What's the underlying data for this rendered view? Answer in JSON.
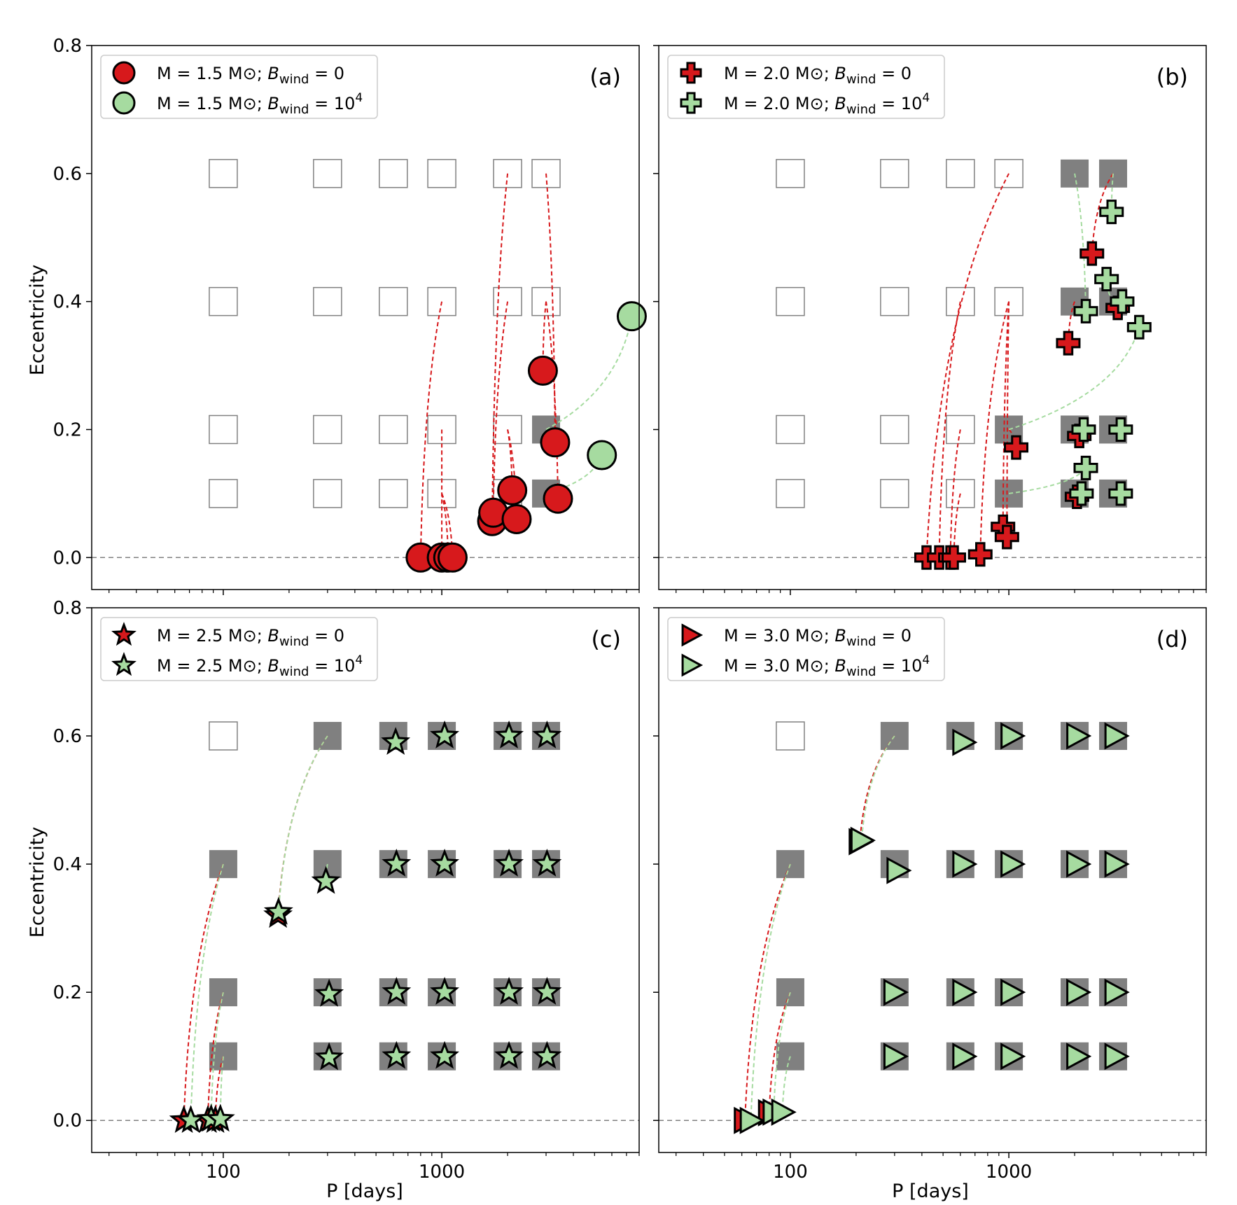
{
  "figure": {
    "xlabel": "P [days]",
    "ylabel": "Eccentricity",
    "xticks": [
      {
        "value": 100,
        "label": "100"
      },
      {
        "value": 1000,
        "label": "1000"
      }
    ],
    "yticks": [
      {
        "value": 0.0,
        "label": "0.0"
      },
      {
        "value": 0.2,
        "label": "0.2"
      },
      {
        "value": 0.4,
        "label": "0.4"
      },
      {
        "value": 0.6,
        "label": "0.6"
      },
      {
        "value": 0.8,
        "label": "0.8"
      }
    ],
    "colors": {
      "red": "#d7191c",
      "green": "#a6dba0",
      "filled_square": "#808080",
      "zero_line": "#808080",
      "red_track": "#d7191c",
      "green_track": "#a6dba0"
    }
  },
  "chart_data": [
    {
      "type": "scatter",
      "panel": "(a)",
      "marker": "circle",
      "xscale": "log",
      "xlim": [
        25,
        8000
      ],
      "ylim": [
        -0.05,
        0.8
      ],
      "legend": [
        {
          "text": "M = 1.5 M⊙;  ",
          "italic": "B",
          "sub": "wind",
          "eq": " = 0",
          "sup": "",
          "color": "red"
        },
        {
          "text": "M = 1.5 M⊙;  ",
          "italic": "B",
          "sub": "wind",
          "eq": " = 10",
          "sup": "4",
          "color": "green"
        }
      ],
      "initial_grid": {
        "P": [
          100,
          300,
          600,
          1000,
          2000,
          3000
        ],
        "e": [
          0.1,
          0.2,
          0.4,
          0.6
        ],
        "filled": [
          [
            3000,
            0.1
          ],
          [
            3000,
            0.2
          ]
        ]
      },
      "series": [
        {
          "name": "Bwind = 0",
          "color": "red",
          "points": [
            {
              "P": 800,
              "e": 0.0,
              "P0": 1000,
              "e0": 0.4
            },
            {
              "P": 1000,
              "e": 0.0,
              "P0": 1000,
              "e0": 0.2
            },
            {
              "P": 1070,
              "e": 0.0,
              "P0": 1000,
              "e0": 0.1
            },
            {
              "P": 1120,
              "e": 0.0,
              "P0": 1000,
              "e0": 0.1
            },
            {
              "P": 1700,
              "e": 0.057,
              "P0": 2000,
              "e0": 0.6
            },
            {
              "P": 1720,
              "e": 0.07,
              "P0": 2000,
              "e0": 0.4
            },
            {
              "P": 2100,
              "e": 0.105,
              "P0": 2000,
              "e0": 0.2
            },
            {
              "P": 2200,
              "e": 0.06,
              "P0": 2000,
              "e0": 0.2
            },
            {
              "P": 2900,
              "e": 0.292,
              "P0": 3000,
              "e0": 0.4
            },
            {
              "P": 3300,
              "e": 0.18,
              "P0": 3000,
              "e0": 0.6
            },
            {
              "P": 3400,
              "e": 0.092,
              "P0": 3000,
              "e0": 0.4
            }
          ]
        },
        {
          "name": "Bwind = 10^4",
          "color": "green",
          "points": [
            {
              "P": 7400,
              "e": 0.377,
              "P0": 3000,
              "e0": 0.2
            },
            {
              "P": 5400,
              "e": 0.16,
              "P0": 3000,
              "e0": 0.1
            }
          ]
        }
      ]
    },
    {
      "type": "scatter",
      "panel": "(b)",
      "marker": "plus",
      "xscale": "log",
      "xlim": [
        25,
        8000
      ],
      "ylim": [
        -0.05,
        0.8
      ],
      "legend": [
        {
          "text": "M = 2.0 M⊙;  ",
          "italic": "B",
          "sub": "wind",
          "eq": " = 0",
          "sup": "",
          "color": "red"
        },
        {
          "text": "M = 2.0 M⊙;  ",
          "italic": "B",
          "sub": "wind",
          "eq": " = 10",
          "sup": "4",
          "color": "green"
        }
      ],
      "initial_grid": {
        "P": [
          100,
          300,
          600,
          1000,
          2000,
          3000
        ],
        "e": [
          0.1,
          0.2,
          0.4,
          0.6
        ],
        "filled": [
          [
            2000,
            0.6
          ],
          [
            3000,
            0.6
          ],
          [
            2000,
            0.4
          ],
          [
            3000,
            0.4
          ],
          [
            1000,
            0.2
          ],
          [
            2000,
            0.2
          ],
          [
            3000,
            0.2
          ],
          [
            1000,
            0.1
          ],
          [
            2000,
            0.1
          ],
          [
            3000,
            0.1
          ]
        ]
      },
      "series": [
        {
          "name": "Bwind = 0",
          "color": "red",
          "points": [
            {
              "P": 420,
              "e": 0.0,
              "P0": 1000,
              "e0": 0.6
            },
            {
              "P": 480,
              "e": 0.0,
              "P0": 600,
              "e0": 0.4
            },
            {
              "P": 540,
              "e": 0.0,
              "P0": 600,
              "e0": 0.2
            },
            {
              "P": 560,
              "e": 0.0,
              "P0": 600,
              "e0": 0.1
            },
            {
              "P": 740,
              "e": 0.005,
              "P0": 1000,
              "e0": 0.4
            },
            {
              "P": 940,
              "e": 0.048,
              "P0": 1000,
              "e0": 0.4
            },
            {
              "P": 980,
              "e": 0.032,
              "P0": 1000,
              "e0": 0.4
            },
            {
              "P": 1080,
              "e": 0.172,
              "P0": 1000,
              "e0": 0.2
            },
            {
              "P": 1870,
              "e": 0.335,
              "P0": 2000,
              "e0": 0.4
            },
            {
              "P": 2400,
              "e": 0.475,
              "P0": 3000,
              "e0": 0.6
            },
            {
              "P": 2100,
              "e": 0.19,
              "P0": 2000,
              "e0": 0.2
            },
            {
              "P": 2050,
              "e": 0.095,
              "P0": 2000,
              "e0": 0.1
            },
            {
              "P": 3150,
              "e": 0.39,
              "P0": 3000,
              "e0": 0.4
            }
          ]
        },
        {
          "name": "Bwind = 10^4",
          "color": "green",
          "points": [
            {
              "P": 2250,
              "e": 0.385,
              "P0": 2000,
              "e0": 0.6
            },
            {
              "P": 2950,
              "e": 0.54,
              "P0": 3000,
              "e0": 0.6
            },
            {
              "P": 2800,
              "e": 0.435,
              "P0": 3000,
              "e0": 0.4
            },
            {
              "P": 3300,
              "e": 0.4,
              "P0": 3000,
              "e0": 0.4
            },
            {
              "P": 3950,
              "e": 0.36,
              "P0": 1000,
              "e0": 0.2
            },
            {
              "P": 2200,
              "e": 0.2,
              "P0": 2000,
              "e0": 0.2
            },
            {
              "P": 3250,
              "e": 0.2,
              "P0": 3000,
              "e0": 0.2
            },
            {
              "P": 2250,
              "e": 0.14,
              "P0": 1000,
              "e0": 0.1
            },
            {
              "P": 2150,
              "e": 0.1,
              "P0": 2000,
              "e0": 0.1
            },
            {
              "P": 3250,
              "e": 0.1,
              "P0": 3000,
              "e0": 0.1
            }
          ]
        }
      ]
    },
    {
      "type": "scatter",
      "panel": "(c)",
      "marker": "star",
      "xscale": "log",
      "xlim": [
        25,
        8000
      ],
      "ylim": [
        -0.05,
        0.8
      ],
      "legend": [
        {
          "text": "M = 2.5 M⊙;  ",
          "italic": "B",
          "sub": "wind",
          "eq": " = 0",
          "sup": "",
          "color": "red"
        },
        {
          "text": "M = 2.5 M⊙;  ",
          "italic": "B",
          "sub": "wind",
          "eq": " = 10",
          "sup": "4",
          "color": "green"
        }
      ],
      "initial_grid": {
        "P": [
          100,
          300,
          600,
          1000,
          2000,
          3000
        ],
        "e": [
          0.1,
          0.2,
          0.4,
          0.6
        ],
        "filled": [
          [
            300,
            0.6
          ],
          [
            600,
            0.6
          ],
          [
            1000,
            0.6
          ],
          [
            2000,
            0.6
          ],
          [
            3000,
            0.6
          ],
          [
            100,
            0.4
          ],
          [
            300,
            0.4
          ],
          [
            600,
            0.4
          ],
          [
            1000,
            0.4
          ],
          [
            2000,
            0.4
          ],
          [
            3000,
            0.4
          ],
          [
            100,
            0.2
          ],
          [
            300,
            0.2
          ],
          [
            600,
            0.2
          ],
          [
            1000,
            0.2
          ],
          [
            2000,
            0.2
          ],
          [
            3000,
            0.2
          ],
          [
            100,
            0.1
          ],
          [
            300,
            0.1
          ],
          [
            600,
            0.1
          ],
          [
            1000,
            0.1
          ],
          [
            2000,
            0.1
          ],
          [
            3000,
            0.1
          ]
        ]
      },
      "series": [
        {
          "name": "Bwind = 0",
          "color": "red",
          "points": [
            {
              "P": 66,
              "e": 0.0,
              "P0": 100,
              "e0": 0.4
            },
            {
              "P": 85,
              "e": 0.0,
              "P0": 100,
              "e0": 0.2
            },
            {
              "P": 92,
              "e": 0.0,
              "P0": 100,
              "e0": 0.1
            },
            {
              "P": 178,
              "e": 0.32,
              "P0": 300,
              "e0": 0.6
            }
          ]
        },
        {
          "name": "Bwind = 10^4",
          "color": "green",
          "points": [
            {
              "P": 71,
              "e": 0.0,
              "P0": 100,
              "e0": 0.4
            },
            {
              "P": 88,
              "e": 0.002,
              "P0": 100,
              "e0": 0.2
            },
            {
              "P": 97,
              "e": 0.002,
              "P0": 100,
              "e0": 0.1
            },
            {
              "P": 179,
              "e": 0.325,
              "P0": 300,
              "e0": 0.6
            },
            {
              "P": 295,
              "e": 0.373,
              "P0": 300,
              "e0": 0.4
            },
            {
              "P": 305,
              "e": 0.197,
              "P0": 300,
              "e0": 0.2
            },
            {
              "P": 305,
              "e": 0.098,
              "P0": 300,
              "e0": 0.1
            },
            {
              "P": 615,
              "e": 0.59,
              "P0": 600,
              "e0": 0.6
            },
            {
              "P": 620,
              "e": 0.4,
              "P0": 600,
              "e0": 0.4
            },
            {
              "P": 620,
              "e": 0.2,
              "P0": 600,
              "e0": 0.2
            },
            {
              "P": 620,
              "e": 0.1,
              "P0": 600,
              "e0": 0.1
            },
            {
              "P": 1030,
              "e": 0.6,
              "P0": 1000,
              "e0": 0.6
            },
            {
              "P": 1030,
              "e": 0.4,
              "P0": 1000,
              "e0": 0.4
            },
            {
              "P": 1030,
              "e": 0.2,
              "P0": 1000,
              "e0": 0.2
            },
            {
              "P": 1030,
              "e": 0.1,
              "P0": 1000,
              "e0": 0.1
            },
            {
              "P": 2030,
              "e": 0.6,
              "P0": 2000,
              "e0": 0.6
            },
            {
              "P": 2030,
              "e": 0.4,
              "P0": 2000,
              "e0": 0.4
            },
            {
              "P": 2030,
              "e": 0.2,
              "P0": 2000,
              "e0": 0.2
            },
            {
              "P": 2030,
              "e": 0.1,
              "P0": 2000,
              "e0": 0.1
            },
            {
              "P": 3030,
              "e": 0.6,
              "P0": 3000,
              "e0": 0.6
            },
            {
              "P": 3030,
              "e": 0.4,
              "P0": 3000,
              "e0": 0.4
            },
            {
              "P": 3030,
              "e": 0.2,
              "P0": 3000,
              "e0": 0.2
            },
            {
              "P": 3030,
              "e": 0.1,
              "P0": 3000,
              "e0": 0.1
            }
          ]
        }
      ]
    },
    {
      "type": "scatter",
      "panel": "(d)",
      "marker": "triangle",
      "xscale": "log",
      "xlim": [
        25,
        8000
      ],
      "ylim": [
        -0.05,
        0.8
      ],
      "legend": [
        {
          "text": "M = 3.0 M⊙;  ",
          "italic": "B",
          "sub": "wind",
          "eq": " = 0",
          "sup": "",
          "color": "red"
        },
        {
          "text": "M = 3.0 M⊙;  ",
          "italic": "B",
          "sub": "wind",
          "eq": " = 10",
          "sup": "4",
          "color": "green"
        }
      ],
      "initial_grid": {
        "P": [
          100,
          300,
          600,
          1000,
          2000,
          3000
        ],
        "e": [
          0.1,
          0.2,
          0.4,
          0.6
        ],
        "filled": [
          [
            300,
            0.6
          ],
          [
            600,
            0.6
          ],
          [
            1000,
            0.6
          ],
          [
            2000,
            0.6
          ],
          [
            3000,
            0.6
          ],
          [
            100,
            0.4
          ],
          [
            300,
            0.4
          ],
          [
            600,
            0.4
          ],
          [
            1000,
            0.4
          ],
          [
            2000,
            0.4
          ],
          [
            3000,
            0.4
          ],
          [
            100,
            0.2
          ],
          [
            300,
            0.2
          ],
          [
            600,
            0.2
          ],
          [
            1000,
            0.2
          ],
          [
            2000,
            0.2
          ],
          [
            3000,
            0.2
          ],
          [
            100,
            0.1
          ],
          [
            300,
            0.1
          ],
          [
            600,
            0.1
          ],
          [
            1000,
            0.1
          ],
          [
            2000,
            0.1
          ],
          [
            3000,
            0.1
          ]
        ]
      },
      "series": [
        {
          "name": "Bwind = 0",
          "color": "red",
          "points": [
            {
              "P": 62,
              "e": 0.0,
              "P0": 100,
              "e0": 0.4
            },
            {
              "P": 80,
              "e": 0.012,
              "P0": 100,
              "e0": 0.2
            },
            {
              "P": 208,
              "e": 0.435,
              "P0": 300,
              "e0": 0.6
            }
          ]
        },
        {
          "name": "Bwind = 10^4",
          "color": "green",
          "points": [
            {
              "P": 66,
              "e": 0.0,
              "P0": 100,
              "e0": 0.4
            },
            {
              "P": 84,
              "e": 0.013,
              "P0": 100,
              "e0": 0.2
            },
            {
              "P": 92,
              "e": 0.013,
              "P0": 100,
              "e0": 0.1
            },
            {
              "P": 212,
              "e": 0.437,
              "P0": 300,
              "e0": 0.6
            },
            {
              "P": 310,
              "e": 0.39,
              "P0": 300,
              "e0": 0.4
            },
            {
              "P": 300,
              "e": 0.2,
              "P0": 300,
              "e0": 0.2
            },
            {
              "P": 300,
              "e": 0.1,
              "P0": 300,
              "e0": 0.1
            },
            {
              "P": 620,
              "e": 0.59,
              "P0": 600,
              "e0": 0.6
            },
            {
              "P": 620,
              "e": 0.4,
              "P0": 600,
              "e0": 0.4
            },
            {
              "P": 620,
              "e": 0.2,
              "P0": 600,
              "e0": 0.2
            },
            {
              "P": 620,
              "e": 0.1,
              "P0": 600,
              "e0": 0.1
            },
            {
              "P": 1030,
              "e": 0.6,
              "P0": 1000,
              "e0": 0.6
            },
            {
              "P": 1030,
              "e": 0.4,
              "P0": 1000,
              "e0": 0.4
            },
            {
              "P": 1030,
              "e": 0.2,
              "P0": 1000,
              "e0": 0.2
            },
            {
              "P": 1030,
              "e": 0.1,
              "P0": 1000,
              "e0": 0.1
            },
            {
              "P": 2060,
              "e": 0.6,
              "P0": 2000,
              "e0": 0.6
            },
            {
              "P": 2060,
              "e": 0.4,
              "P0": 2000,
              "e0": 0.4
            },
            {
              "P": 2060,
              "e": 0.2,
              "P0": 2000,
              "e0": 0.2
            },
            {
              "P": 2060,
              "e": 0.1,
              "P0": 2000,
              "e0": 0.1
            },
            {
              "P": 3080,
              "e": 0.6,
              "P0": 3000,
              "e0": 0.6
            },
            {
              "P": 3080,
              "e": 0.4,
              "P0": 3000,
              "e0": 0.4
            },
            {
              "P": 3080,
              "e": 0.2,
              "P0": 3000,
              "e0": 0.2
            },
            {
              "P": 3080,
              "e": 0.1,
              "P0": 3000,
              "e0": 0.1
            }
          ]
        }
      ]
    }
  ]
}
